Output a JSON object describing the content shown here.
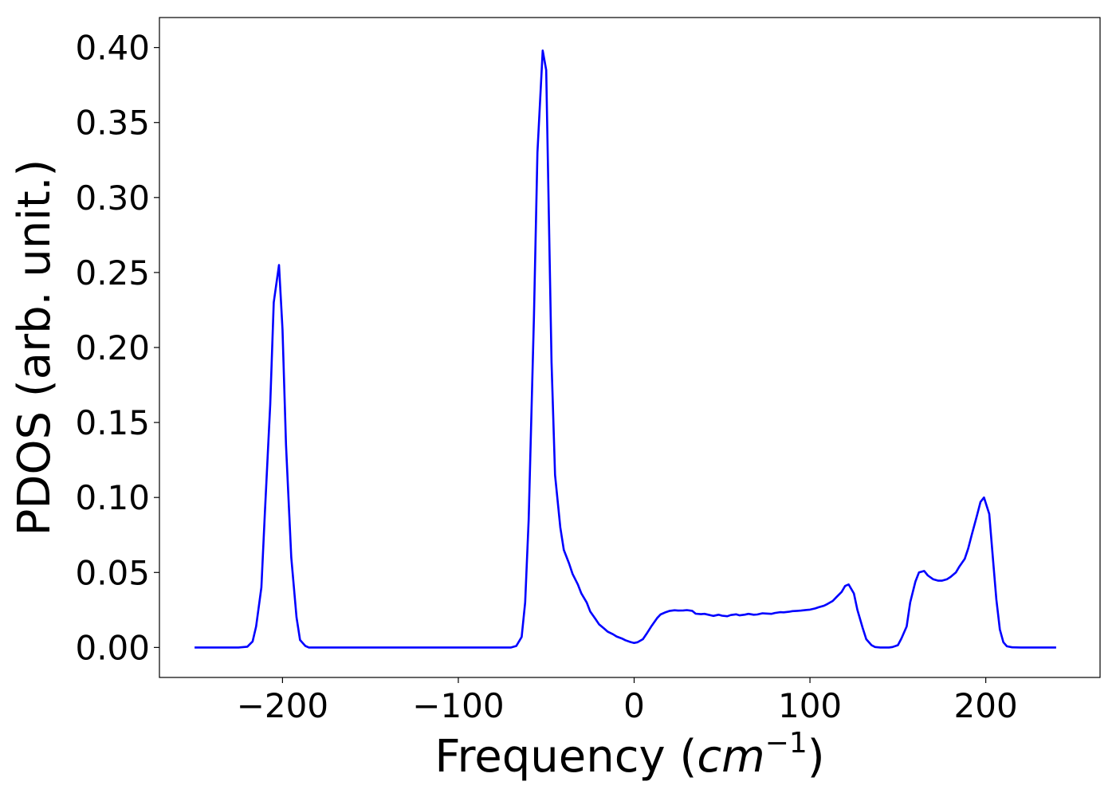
{
  "chart_data": {
    "type": "line",
    "xlabel": "Frequency (cm⁻¹)",
    "xlabel_parts": {
      "prefix": "Frequency (",
      "var": "cm",
      "sup": "−1",
      "suffix": ")"
    },
    "ylabel": "PDOS (arb. unit.)",
    "xlim": [
      -270,
      265
    ],
    "ylim": [
      -0.02,
      0.42
    ],
    "xticks": [
      {
        "value": -200,
        "label": "−200"
      },
      {
        "value": -100,
        "label": "−100"
      },
      {
        "value": 0,
        "label": "0"
      },
      {
        "value": 100,
        "label": "100"
      },
      {
        "value": 200,
        "label": "200"
      }
    ],
    "yticks": [
      {
        "value": 0.0,
        "label": "0.00"
      },
      {
        "value": 0.05,
        "label": "0.05"
      },
      {
        "value": 0.1,
        "label": "0.10"
      },
      {
        "value": 0.15,
        "label": "0.15"
      },
      {
        "value": 0.2,
        "label": "0.20"
      },
      {
        "value": 0.25,
        "label": "0.25"
      },
      {
        "value": 0.3,
        "label": "0.30"
      },
      {
        "value": 0.35,
        "label": "0.35"
      },
      {
        "value": 0.4,
        "label": "0.40"
      }
    ],
    "grid": false,
    "series": [
      {
        "color": "#0000ff",
        "x": [
          -250,
          -225,
          -220,
          -217,
          -215,
          -212,
          -210,
          -207,
          -205,
          -202,
          -200,
          -198,
          -195,
          -192,
          -190,
          -187,
          -185,
          -182,
          -180,
          -150,
          -100,
          -70,
          -67,
          -64,
          -62,
          -60,
          -57,
          -55,
          -52,
          -50,
          -47,
          -45,
          -42,
          -40,
          -37,
          -35,
          -32,
          -30,
          -27,
          -25,
          -22,
          -20,
          -17,
          -15,
          -12,
          -10,
          -7,
          -5,
          -2,
          0,
          2,
          5,
          7,
          10,
          13,
          15,
          18,
          20,
          23,
          25,
          28,
          30,
          33,
          35,
          38,
          40,
          43,
          45,
          48,
          50,
          53,
          55,
          58,
          60,
          63,
          65,
          68,
          70,
          73,
          75,
          78,
          80,
          83,
          85,
          88,
          90,
          93,
          95,
          98,
          100,
          103,
          105,
          108,
          110,
          113,
          115,
          118,
          120,
          122,
          125,
          127,
          130,
          132,
          135,
          137,
          140,
          143,
          145,
          147,
          150,
          152,
          155,
          157,
          160,
          162,
          165,
          167,
          170,
          173,
          175,
          178,
          180,
          183,
          185,
          188,
          190,
          192,
          195,
          197,
          199,
          202,
          204,
          206,
          208,
          210,
          212,
          215,
          220,
          240
        ],
        "y": [
          0.0,
          0.0,
          0.0005,
          0.004,
          0.014,
          0.04,
          0.09,
          0.162,
          0.23,
          0.255,
          0.212,
          0.135,
          0.06,
          0.02,
          0.005,
          0.001,
          0.0,
          0.0,
          0.0,
          0.0,
          0.0,
          0.0,
          0.001,
          0.007,
          0.03,
          0.085,
          0.22,
          0.33,
          0.398,
          0.385,
          0.19,
          0.115,
          0.08,
          0.065,
          0.056,
          0.049,
          0.042,
          0.036,
          0.03,
          0.024,
          0.019,
          0.0155,
          0.0125,
          0.0105,
          0.0088,
          0.0073,
          0.006,
          0.0048,
          0.0036,
          0.003,
          0.0035,
          0.0055,
          0.009,
          0.0145,
          0.0195,
          0.022,
          0.0235,
          0.0243,
          0.0248,
          0.0246,
          0.0247,
          0.0249,
          0.0244,
          0.0225,
          0.0222,
          0.0224,
          0.0216,
          0.021,
          0.0218,
          0.0212,
          0.0208,
          0.0216,
          0.0221,
          0.0214,
          0.0219,
          0.0224,
          0.0218,
          0.022,
          0.0228,
          0.0226,
          0.0224,
          0.023,
          0.0235,
          0.0234,
          0.0238,
          0.0242,
          0.0244,
          0.0246,
          0.025,
          0.0252,
          0.026,
          0.0268,
          0.0278,
          0.029,
          0.031,
          0.0335,
          0.037,
          0.041,
          0.042,
          0.036,
          0.025,
          0.013,
          0.0055,
          0.0015,
          0.0003,
          0.0,
          0.0,
          0.0,
          0.0003,
          0.0015,
          0.006,
          0.014,
          0.03,
          0.044,
          0.05,
          0.051,
          0.048,
          0.0455,
          0.0445,
          0.0445,
          0.0455,
          0.047,
          0.05,
          0.054,
          0.059,
          0.066,
          0.075,
          0.088,
          0.097,
          0.1,
          0.089,
          0.06,
          0.032,
          0.012,
          0.0035,
          0.0008,
          0.0001,
          0.0,
          0.0
        ]
      }
    ]
  }
}
